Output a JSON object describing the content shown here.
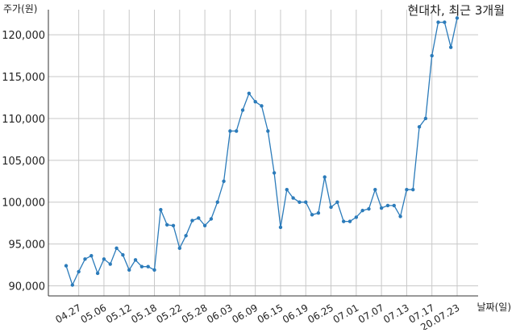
{
  "chart_data": {
    "type": "line",
    "title": "현대차, 최근 3개월",
    "ylabel": "주가(원)",
    "xlabel": "날짜(일)",
    "ylim": [
      88800,
      123000
    ],
    "yticks": [
      90000,
      95000,
      100000,
      105000,
      110000,
      115000,
      120000
    ],
    "ytick_labels": [
      "90,000",
      "95,000",
      "100,000",
      "105,000",
      "110,000",
      "115,000",
      "120,000"
    ],
    "xtick_labels": [
      "04.27",
      "05.06",
      "05.12",
      "05.18",
      "05.22",
      "05.28",
      "06.03",
      "06.09",
      "06.15",
      "06.19",
      "06.25",
      "07.01",
      "07.07",
      "07.13",
      "07.17",
      "20.07.23"
    ],
    "xtick_index": [
      2,
      6,
      10,
      14,
      18,
      22,
      26,
      30,
      34,
      38,
      42,
      46,
      50,
      54,
      58,
      62
    ],
    "grid": true,
    "line_color": "#2b7bba",
    "series": [
      {
        "values": [
          92400,
          90100,
          91700,
          93200,
          93600,
          91500,
          93200,
          92600,
          94500,
          93700,
          91900,
          93100,
          92300,
          92300,
          91900,
          99100,
          97300,
          97200,
          94500,
          96000,
          97800,
          98100,
          97200,
          98000,
          100000,
          102500,
          108500,
          108500,
          111000,
          113000,
          112000,
          111500,
          108500,
          103500,
          97000,
          101500,
          100500,
          100000,
          100000,
          98500,
          98700,
          103000,
          99400,
          100000,
          97700,
          97700,
          98200,
          99000,
          99200,
          101500,
          99300,
          99600,
          99600,
          98300,
          101500,
          101500,
          109000,
          110000,
          117500,
          121500,
          121500,
          118500,
          122000
        ]
      }
    ]
  }
}
